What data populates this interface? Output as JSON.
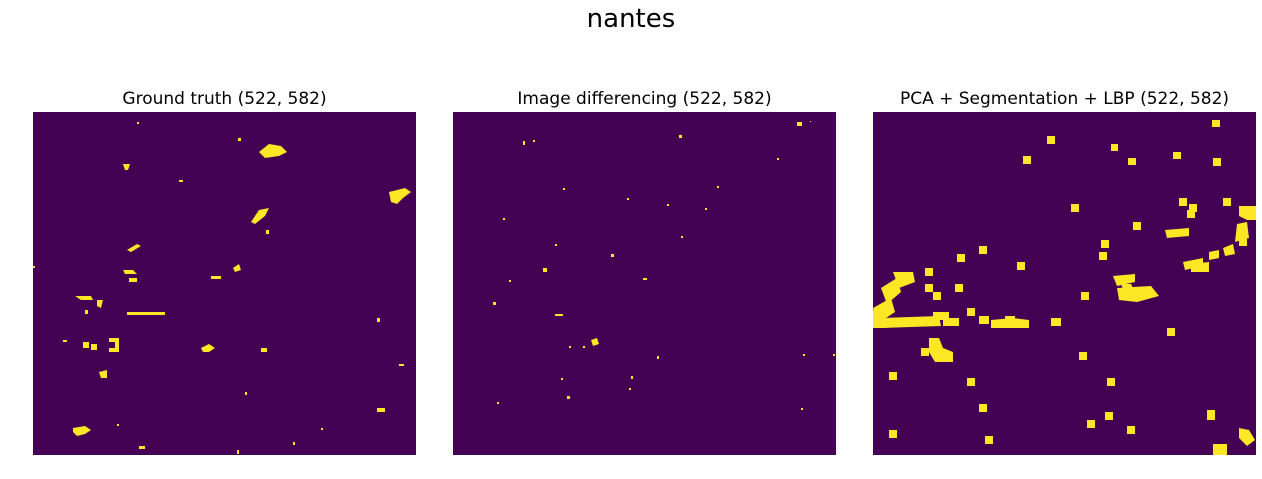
{
  "figure": {
    "title": "nantes"
  },
  "panels": [
    {
      "title": "Ground truth (522, 582)"
    },
    {
      "title": "Image differencing (522, 582)"
    },
    {
      "title": "PCA + Segmentation + LBP (522, 582)"
    }
  ],
  "colors": {
    "background": "#440154",
    "change": "#fde725"
  }
}
